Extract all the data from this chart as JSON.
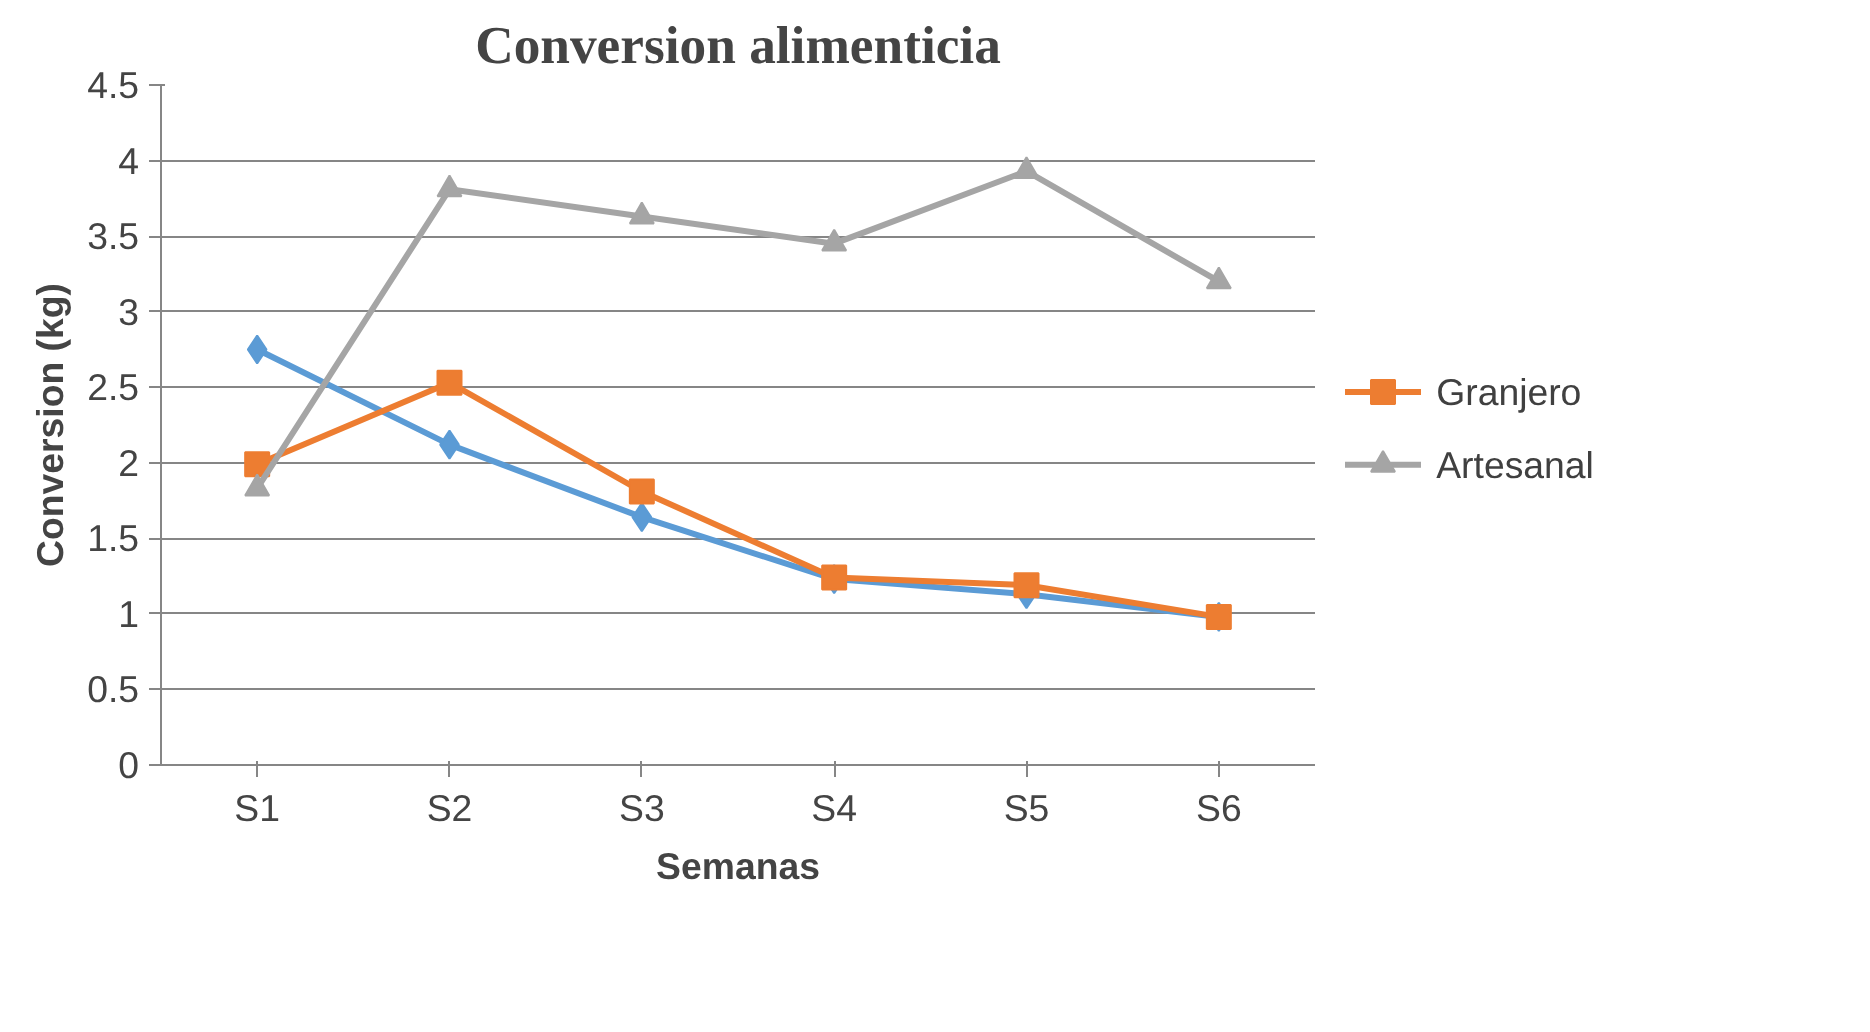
{
  "chart_data": {
    "type": "line",
    "title": "Conversion alimenticia",
    "xlabel": "Semanas",
    "ylabel": "Conversion (kg)",
    "categories": [
      "S1",
      "S2",
      "S3",
      "S4",
      "S5",
      "S6"
    ],
    "series": [
      {
        "color": "#5b9bd5",
        "marker": "diamond",
        "values": [
          2.75,
          2.12,
          1.64,
          1.23,
          1.13,
          0.98
        ]
      },
      {
        "name": "Granjero",
        "color": "#ed7d31",
        "marker": "square",
        "values": [
          1.99,
          2.53,
          1.81,
          1.24,
          1.19,
          0.98
        ]
      },
      {
        "name": "Artesanal",
        "color": "#a5a5a5",
        "marker": "triangle",
        "values": [
          1.83,
          3.81,
          3.63,
          3.45,
          3.93,
          3.2
        ]
      }
    ],
    "ylim": [
      0,
      4.5
    ],
    "yticks": [
      0,
      0.5,
      1,
      1.5,
      2,
      2.5,
      3,
      3.5,
      4,
      4.5
    ],
    "grid": "y",
    "legend": "right"
  }
}
